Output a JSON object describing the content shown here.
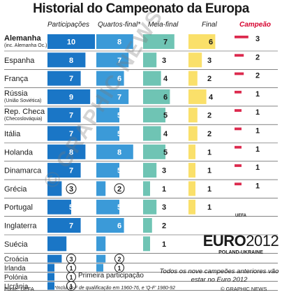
{
  "title": "Historial do Campeonato da Europa",
  "header": {
    "participacoes": "Participações",
    "quartos": "Quartos-final*",
    "meia": "Meia-final",
    "final": "Final",
    "campeao": "Campeão"
  },
  "watermark": "© GRAPHIC NEWS",
  "logo": {
    "uefa": "UEFA",
    "euro": "EURO",
    "year": "2012",
    "hosts": "POLAND-UKRAINE"
  },
  "note": "Todos os nove campeões anteriores vão estar no Euro 2012",
  "first_participation_label": "Primeira participação",
  "footnote": "*Inclui Q-F de qualificação em 1960-76, e 'Q-F' 1980-92",
  "source": "Fonte: UEFA",
  "credit": "© GRAPHIC NEWS",
  "colors": {
    "participacoes": "#1a76c6",
    "quartos": "#3b9ad8",
    "meia": "#6fc4b4",
    "final": "#fae06a",
    "campeao": "#dc2a4e",
    "separator": "#3a3a3a"
  },
  "chart_data": {
    "type": "table",
    "columns": [
      "Participações",
      "Quartos-final*",
      "Meia-final",
      "Final",
      "Campeão"
    ],
    "rows": [
      {
        "name": "Alemanha",
        "sub": "(inc. Alemanha Oc.)",
        "values": [
          10,
          8,
          7,
          6,
          3
        ]
      },
      {
        "name": "Espanha",
        "sub": "",
        "values": [
          8,
          7,
          3,
          3,
          2
        ]
      },
      {
        "name": "França",
        "sub": "",
        "values": [
          7,
          6,
          4,
          2,
          2
        ]
      },
      {
        "name": "Rússia",
        "sub": "(União Soviética)",
        "values": [
          9,
          7,
          6,
          4,
          1
        ]
      },
      {
        "name": "Rep. Checa",
        "sub": "(Checoslováquia)",
        "values": [
          7,
          5,
          5,
          2,
          1
        ]
      },
      {
        "name": "Itália",
        "sub": "",
        "values": [
          7,
          5,
          4,
          2,
          1
        ]
      },
      {
        "name": "Holanda",
        "sub": "",
        "values": [
          8,
          8,
          5,
          1,
          1
        ]
      },
      {
        "name": "Dinamarca",
        "sub": "",
        "values": [
          7,
          5,
          3,
          1,
          1
        ]
      },
      {
        "name": "Grécia",
        "sub": "",
        "values": [
          3,
          2,
          1,
          1,
          1
        ]
      },
      {
        "name": "Portugal",
        "sub": "",
        "values": [
          5,
          5,
          3,
          1,
          0
        ]
      },
      {
        "name": "Inglaterra",
        "sub": "",
        "values": [
          7,
          6,
          2,
          0,
          0
        ]
      },
      {
        "name": "Suécia",
        "sub": "",
        "values": [
          4,
          2,
          1,
          0,
          0
        ]
      },
      {
        "name": "Croácia",
        "sub": "",
        "values": [
          3,
          2,
          0,
          0,
          0
        ]
      },
      {
        "name": "Irlanda",
        "sub": "",
        "values": [
          1,
          1,
          0,
          0,
          0
        ]
      },
      {
        "name": "Polónia",
        "sub": "",
        "values": [
          1,
          0,
          0,
          0,
          0
        ]
      },
      {
        "name": "Ucrânia",
        "sub": "",
        "values": [
          1,
          0,
          0,
          0,
          0
        ]
      }
    ],
    "first_participation": [
      "Polónia",
      "Ucrânia"
    ],
    "circled_values": {
      "Grécia": [
        0,
        1
      ],
      "Portugal": [],
      "Croácia": [
        0,
        1
      ],
      "Irlanda": [
        0,
        1
      ],
      "Polónia": [
        0
      ],
      "Ucrânia": [
        0
      ]
    }
  }
}
